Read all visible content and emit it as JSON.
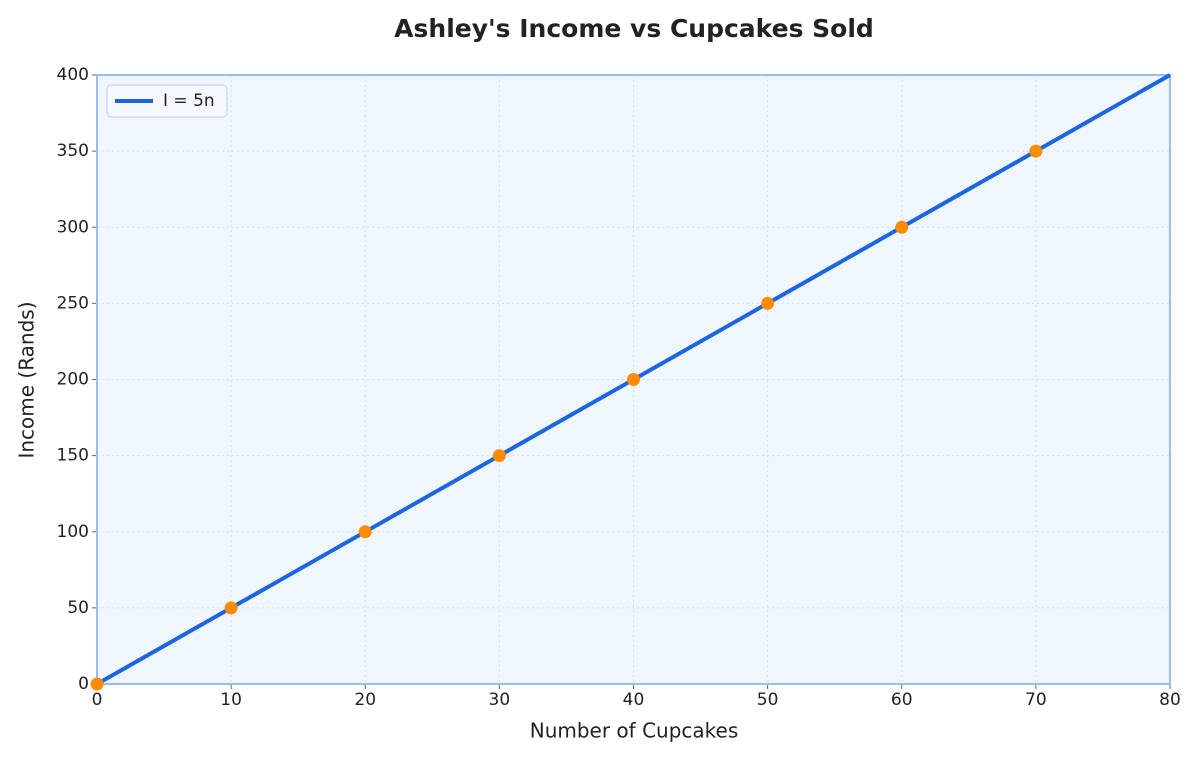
{
  "chart_data": {
    "type": "line",
    "title": "Ashley's Income vs Cupcakes Sold",
    "x_label": "Number of Cupcakes",
    "y_label": "Income (Rands)",
    "series": [
      {
        "name": "I = 5n",
        "color": "#1a66e0",
        "x": [
          0,
          80
        ],
        "values": [
          0,
          400
        ]
      }
    ],
    "points": {
      "color": "#ff8c00",
      "x": [
        0,
        10,
        20,
        30,
        40,
        50,
        60,
        70
      ],
      "values": [
        0,
        50,
        100,
        150,
        200,
        250,
        300,
        350
      ]
    },
    "xlim": [
      0,
      80
    ],
    "xticks": [
      0,
      10,
      20,
      30,
      40,
      50,
      60,
      70,
      80
    ],
    "ylim": [
      0,
      400
    ],
    "yticks": [
      0,
      50,
      100,
      150,
      200,
      250,
      300,
      350,
      400
    ],
    "grid": true,
    "legend": "upper left",
    "background": "#f0f6fe"
  }
}
